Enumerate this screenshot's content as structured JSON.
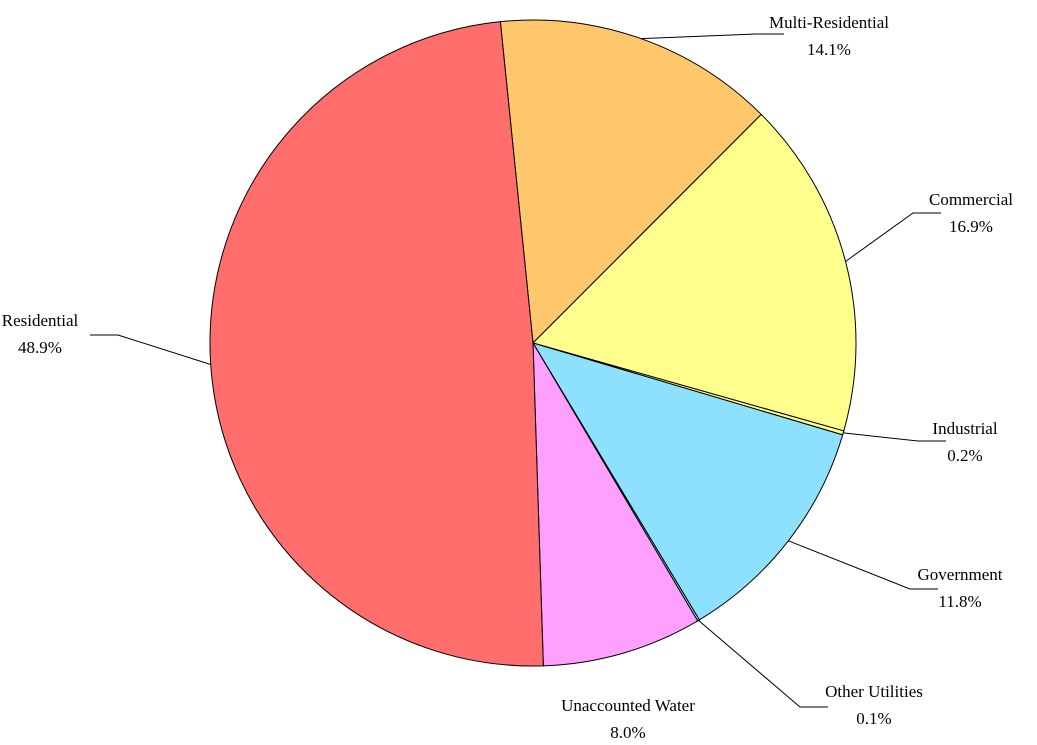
{
  "chart_data": {
    "type": "pie",
    "slices": [
      {
        "label": "Multi-Residential",
        "value": 14.1,
        "value_label": "14.1%",
        "color": "#ffc76b"
      },
      {
        "label": "Commercial",
        "value": 16.9,
        "value_label": "16.9%",
        "color": "#ffff8e"
      },
      {
        "label": "Industrial",
        "value": 0.2,
        "value_label": "0.2%",
        "color": "#ffff8e"
      },
      {
        "label": "Government",
        "value": 11.8,
        "value_label": "11.8%",
        "color": "#8de1fc"
      },
      {
        "label": "Other Utilities",
        "value": 0.1,
        "value_label": "0.1%",
        "color": "#8de1fc"
      },
      {
        "label": "Unaccounted Water",
        "value": 8.0,
        "value_label": "8.0%",
        "color": "#ffa0ff"
      },
      {
        "label": "Residential",
        "value": 48.9,
        "value_label": "48.9%",
        "color": "#ff6d6d"
      }
    ],
    "start_angle_deg": -5.8,
    "direction": "clockwise",
    "legend": "none",
    "labels": "outside-with-leader-lines"
  }
}
